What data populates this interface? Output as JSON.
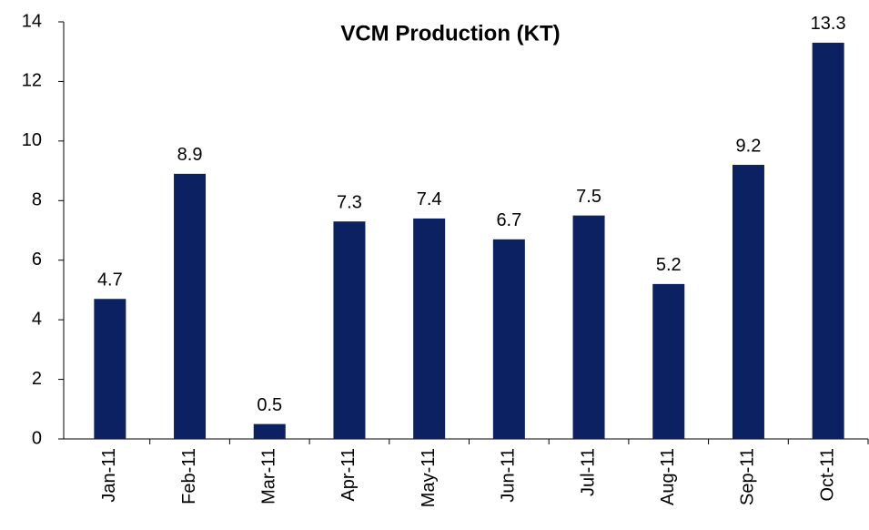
{
  "chart_data": {
    "type": "bar",
    "title": "VCM Production (KT)",
    "categories": [
      "Jan-11",
      "Feb-11",
      "Mar-11",
      "Apr-11",
      "May-11",
      "Jun-11",
      "Jul-11",
      "Aug-11",
      "Sep-11",
      "Oct-11"
    ],
    "values": [
      4.7,
      8.9,
      0.5,
      7.3,
      7.4,
      6.7,
      7.5,
      5.2,
      9.2,
      13.3
    ],
    "color": "#0b2161",
    "ylim": [
      0,
      14
    ],
    "yticks": [
      0,
      2,
      4,
      6,
      8,
      10,
      12,
      14
    ],
    "grid": false
  }
}
